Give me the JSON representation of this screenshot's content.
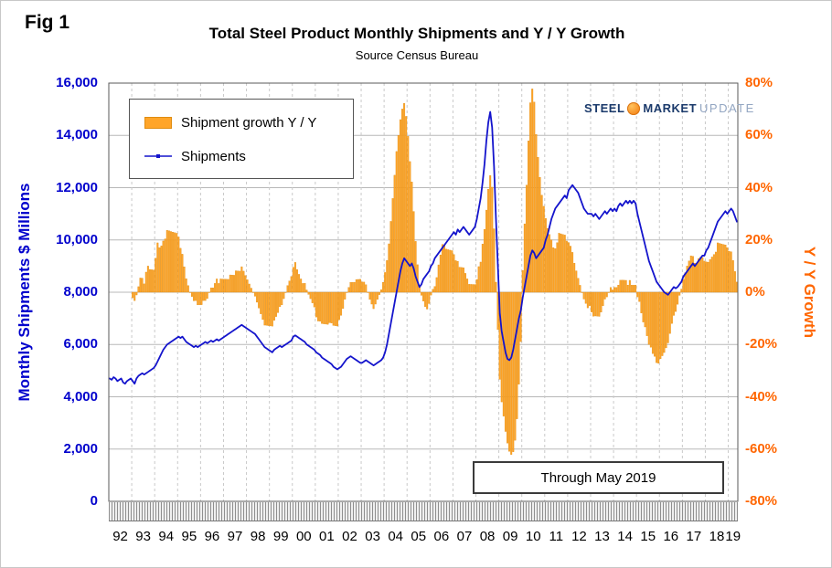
{
  "fig_label": "Fig 1",
  "title": "Total Steel Product Monthly Shipments and Y / Y Growth",
  "subtitle": "Source Census Bureau",
  "annotation": "Through May 2019",
  "legend": {
    "bar_label": "Shipment growth Y / Y",
    "line_label": "Shipments"
  },
  "logo": {
    "steel": "STEEL",
    "market": "MARKET",
    "update": "UPDATE"
  },
  "colors": {
    "line_blue": "#1414cc",
    "bar_orange": "#ffa529",
    "bar_orange_border": "#e08c10",
    "left_axis_blue": "#0000cc",
    "right_axis_orange": "#ff6600",
    "h_grid": "#b8b8b8",
    "v_grid_dashed": "#c9c9c9",
    "plot_border": "#5a5a5a"
  },
  "chart_data": {
    "type": "bar+line dual-axis",
    "title": "Total Steel Product Monthly Shipments and Y / Y Growth",
    "subtitle": "Source Census Bureau",
    "x_start": "1992-01",
    "x_end": "2019-05",
    "x_tick_labels": [
      "92",
      "93",
      "94",
      "95",
      "96",
      "97",
      "98",
      "99",
      "00",
      "01",
      "02",
      "03",
      "04",
      "05",
      "06",
      "07",
      "08",
      "09",
      "10",
      "11",
      "12",
      "13",
      "14",
      "15",
      "16",
      "17",
      "18",
      "19"
    ],
    "left_axis": {
      "label": "Monthly Shipments $ Millions",
      "min": 0,
      "max": 16000,
      "step": 2000,
      "tick_labels": [
        "16,000",
        "14,000",
        "12,000",
        "10,000",
        "8,000",
        "6,000",
        "4,000",
        "2,000",
        "0"
      ]
    },
    "right_axis": {
      "label": "Y / Y Growth",
      "min": -80,
      "max": 80,
      "step": 20,
      "unit": "%",
      "tick_labels": [
        "80%",
        "60%",
        "40%",
        "20%",
        "0%",
        "-20%",
        "-40%",
        "-60%",
        "-80%"
      ]
    },
    "grid": {
      "horizontal": true,
      "vertical_yearly_dashed": true
    },
    "legend_position": "top-left-inside",
    "series": [
      {
        "name": "Shipments",
        "type": "line",
        "axis": "left",
        "units": "$ millions per month",
        "monthly_values": [
          4700,
          4650,
          4750,
          4700,
          4600,
          4650,
          4700,
          4550,
          4500,
          4600,
          4650,
          4700,
          4600,
          4500,
          4700,
          4800,
          4850,
          4900,
          4850,
          4900,
          4950,
          5000,
          5050,
          5100,
          5200,
          5350,
          5500,
          5650,
          5800,
          5900,
          6000,
          6050,
          6100,
          6150,
          6200,
          6250,
          6300,
          6250,
          6300,
          6200,
          6100,
          6050,
          6000,
          5950,
          5900,
          5950,
          5900,
          5950,
          6000,
          6050,
          6100,
          6050,
          6100,
          6150,
          6100,
          6150,
          6200,
          6150,
          6200,
          6250,
          6300,
          6350,
          6400,
          6450,
          6500,
          6550,
          6600,
          6650,
          6700,
          6750,
          6700,
          6650,
          6600,
          6550,
          6500,
          6450,
          6400,
          6300,
          6200,
          6100,
          6000,
          5900,
          5850,
          5800,
          5750,
          5700,
          5800,
          5850,
          5900,
          5950,
          5900,
          5950,
          6000,
          6050,
          6100,
          6150,
          6300,
          6350,
          6300,
          6250,
          6200,
          6150,
          6100,
          6000,
          5950,
          5900,
          5850,
          5800,
          5700,
          5650,
          5600,
          5500,
          5450,
          5400,
          5350,
          5300,
          5250,
          5150,
          5100,
          5050,
          5100,
          5150,
          5250,
          5350,
          5450,
          5500,
          5550,
          5500,
          5450,
          5400,
          5350,
          5300,
          5300,
          5350,
          5400,
          5350,
          5300,
          5250,
          5200,
          5250,
          5300,
          5350,
          5400,
          5500,
          5700,
          6000,
          6400,
          6800,
          7200,
          7600,
          8000,
          8400,
          8800,
          9100,
          9300,
          9200,
          9100,
          9000,
          9100,
          8900,
          8600,
          8400,
          8200,
          8300,
          8500,
          8600,
          8700,
          8800,
          9000,
          9100,
          9300,
          9400,
          9500,
          9600,
          9700,
          9800,
          9900,
          10000,
          10100,
          10200,
          10300,
          10200,
          10400,
          10300,
          10400,
          10500,
          10400,
          10300,
          10200,
          10300,
          10400,
          10500,
          10800,
          11200,
          11600,
          12200,
          12900,
          13800,
          14500,
          14900,
          14300,
          12800,
          10800,
          9000,
          7200,
          6500,
          6100,
          5700,
          5450,
          5400,
          5500,
          5800,
          6200,
          6600,
          7000,
          7300,
          7800,
          8200,
          8600,
          9000,
          9400,
          9600,
          9500,
          9300,
          9400,
          9500,
          9600,
          9700,
          10000,
          10200,
          10500,
          10800,
          11000,
          11200,
          11300,
          11400,
          11500,
          11600,
          11700,
          11600,
          11900,
          12000,
          12100,
          12000,
          11900,
          11800,
          11600,
          11400,
          11200,
          11100,
          11000,
          11000,
          11000,
          10900,
          11000,
          10900,
          10800,
          10900,
          11000,
          11100,
          11000,
          11100,
          11200,
          11100,
          11200,
          11100,
          11300,
          11400,
          11300,
          11400,
          11500,
          11400,
          11500,
          11400,
          11500,
          11400,
          11000,
          10700,
          10400,
          10100,
          9800,
          9500,
          9200,
          9000,
          8800,
          8600,
          8400,
          8300,
          8200,
          8100,
          8000,
          7950,
          7900,
          8000,
          8100,
          8200,
          8150,
          8200,
          8300,
          8400,
          8600,
          8700,
          8800,
          8900,
          9000,
          9100,
          9000,
          9100,
          9200,
          9300,
          9400,
          9400,
          9600,
          9700,
          9900,
          10100,
          10300,
          10500,
          10700,
          10800,
          10900,
          11000,
          11100,
          11000,
          11100,
          11200,
          11100,
          10900,
          10700
        ]
      },
      {
        "name": "Shipment growth Y / Y",
        "type": "bar",
        "axis": "right",
        "units": "percent",
        "derivation": "year-over-year percent change of the Shipments monthly_values; first bar is 1993-01",
        "notable_values": {
          "1994_peak_pct": 24,
          "2001_trough_pct": -13,
          "2004_peak_pct": 72,
          "2008_peak_pct": 45,
          "2009_trough_pct": -62,
          "2010_peak_pct": 78,
          "2015_trough_pct": -27,
          "2018_peak_pct": 19,
          "2019_may_pct": 4
        }
      }
    ]
  }
}
